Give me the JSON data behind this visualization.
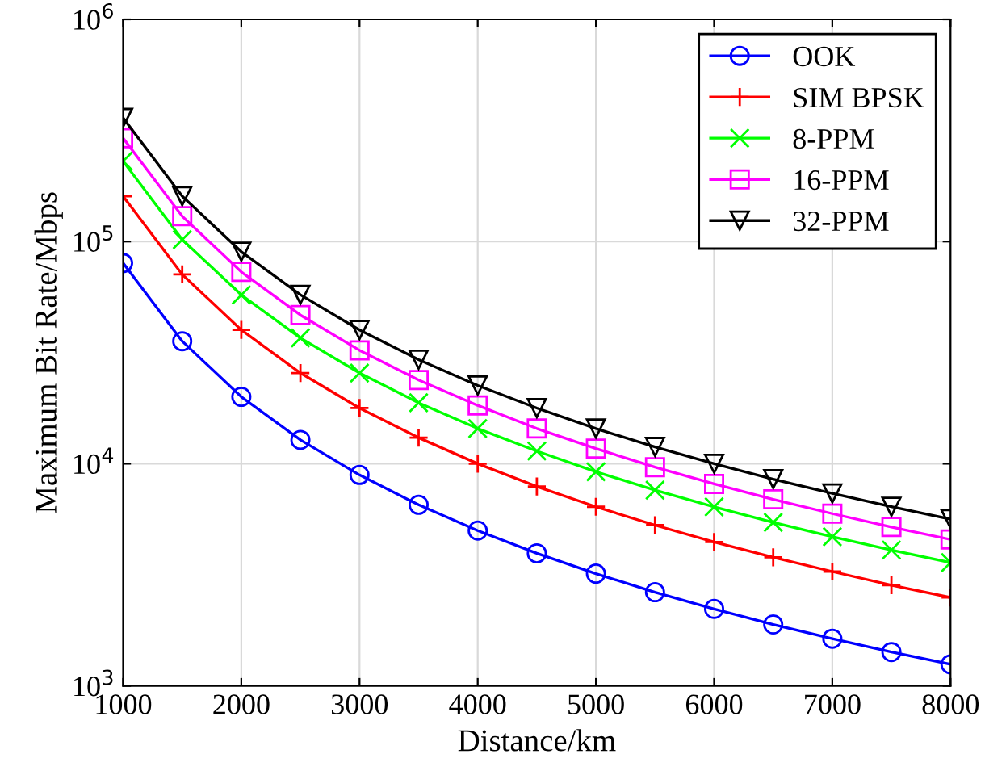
{
  "chart_data": {
    "type": "line",
    "xlabel": "Distance/km",
    "ylabel": "Maximum Bit Rate/Mbps",
    "log": "y",
    "x": [
      1000,
      1500,
      2000,
      2500,
      3000,
      3500,
      4000,
      4500,
      5000,
      5500,
      6000,
      6500,
      7000,
      7500,
      8000
    ],
    "xlim": [
      1000,
      8000
    ],
    "xticks": [
      1000,
      2000,
      3000,
      4000,
      5000,
      6000,
      7000,
      8000
    ],
    "ylim": [
      1000,
      1000000
    ],
    "yticks": [
      {
        "value": 1000,
        "label": "10$^{3}$"
      },
      {
        "value": 10000,
        "label": "10$^{4}$"
      },
      {
        "value": 100000,
        "label": "10$^{5}$"
      },
      {
        "value": 1000000,
        "label": "10$^{6}$"
      }
    ],
    "grid": true,
    "legend": "top right",
    "series": [
      {
        "name": "OOK",
        "color": "#0000ff",
        "marker": "circle",
        "values": [
          80000,
          35600,
          20000,
          12800,
          8900,
          6530,
          5000,
          3950,
          3200,
          2640,
          2220,
          1890,
          1630,
          1420,
          1250
        ]
      },
      {
        "name": "SIM BPSK",
        "color": "#ff0000",
        "marker": "plus",
        "values": [
          160000,
          71100,
          40000,
          25600,
          17800,
          13100,
          10000,
          7900,
          6400,
          5290,
          4440,
          3790,
          3270,
          2840,
          2500
        ]
      },
      {
        "name": "8-PPM",
        "color": "#00ff00",
        "marker": "cross",
        "values": [
          230000,
          102000,
          57500,
          36800,
          25600,
          18800,
          14400,
          11400,
          9200,
          7600,
          6390,
          5440,
          4690,
          4090,
          3590
        ]
      },
      {
        "name": "16-PPM",
        "color": "#ff00ff",
        "marker": "square",
        "values": [
          292000,
          130000,
          73000,
          46700,
          32400,
          23800,
          18300,
          14400,
          11700,
          9650,
          8110,
          6910,
          5960,
          5190,
          4560
        ]
      },
      {
        "name": "32-PPM",
        "color": "#000000",
        "marker": "triangle",
        "values": [
          360000,
          160000,
          90000,
          57600,
          40000,
          29400,
          22500,
          17800,
          14400,
          11900,
          10000,
          8520,
          7350,
          6400,
          5630
        ]
      }
    ]
  }
}
